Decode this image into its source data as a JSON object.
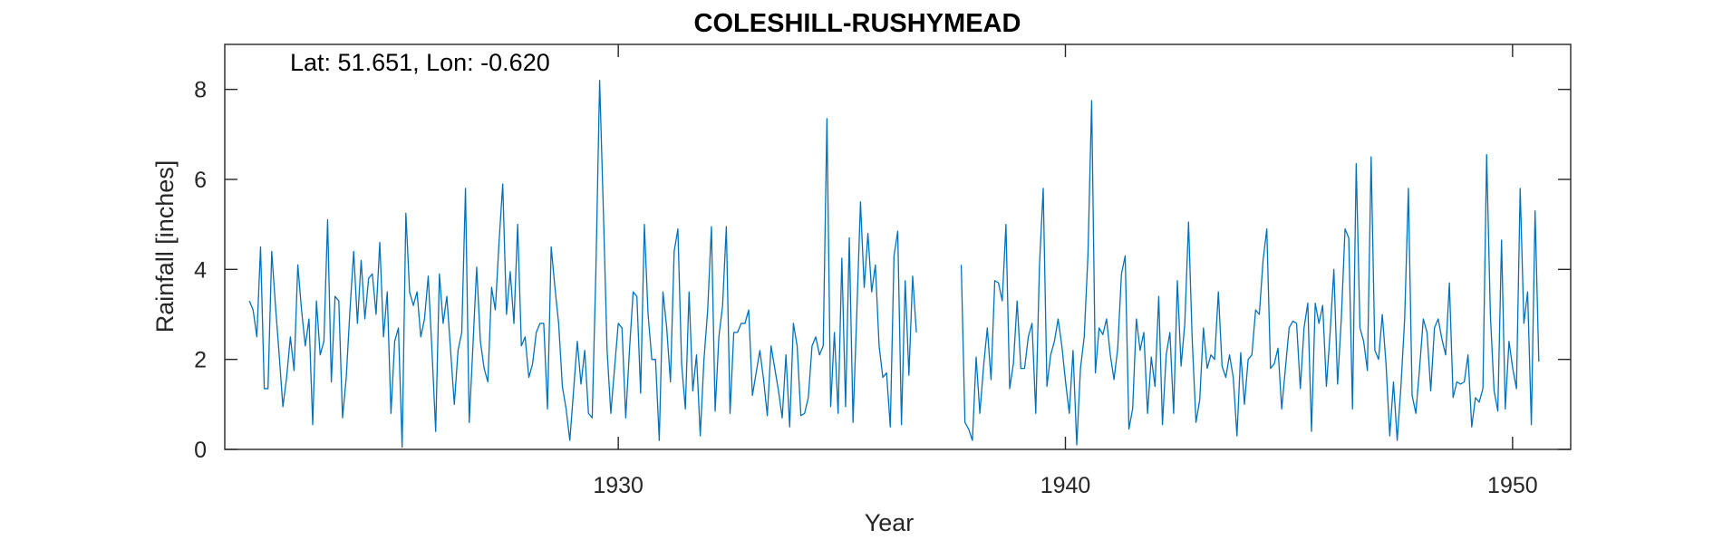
{
  "chart_data": {
    "type": "line",
    "title": "COLESHILL-RUSHYMEAD",
    "annotation": "Lat: 51.651, Lon: -0.620",
    "xlabel": "Year",
    "ylabel": "Rainfall [inches]",
    "xlim": [
      1921.2,
      1951.3
    ],
    "ylim": [
      0,
      9
    ],
    "xticks": [
      1930,
      1940,
      1950
    ],
    "xtick_labels": [
      "1930",
      "1940",
      "1950"
    ],
    "yticks": [
      0,
      2,
      4,
      6,
      8
    ],
    "ytick_labels": [
      "0",
      "2",
      "4",
      "6",
      "8"
    ],
    "grid": false,
    "box": true,
    "color": "#0072BD",
    "series": [
      {
        "segments": [
          {
            "start": 1921.75,
            "values": [
              3.3,
              3.1,
              2.5,
              4.5,
              1.35,
              1.35,
              4.4,
              3.2,
              2.1,
              0.95,
              1.6,
              2.5,
              1.75,
              4.1,
              3.1,
              2.3,
              2.9,
              0.55,
              3.3,
              2.1,
              2.4,
              5.1,
              1.5,
              3.4,
              3.3,
              0.7,
              1.6,
              3.1,
              4.4,
              2.8,
              4.2,
              2.9,
              3.8,
              3.9,
              3.0,
              4.6,
              2.5,
              3.5,
              0.8,
              2.4,
              2.7,
              0.05,
              5.25,
              3.5,
              3.2,
              3.5,
              2.5,
              2.9,
              3.85,
              2.2,
              0.4,
              3.9,
              2.8,
              3.4,
              2.2,
              1.0,
              2.2,
              2.6,
              5.8,
              0.6,
              2.3,
              4.05,
              2.4,
              1.8,
              1.5,
              3.6,
              3.1,
              4.6,
              5.9,
              3.0,
              3.95,
              2.8,
              5.0,
              2.3,
              2.5,
              1.6,
              1.9,
              2.6,
              2.8,
              2.8,
              0.9,
              4.5,
              3.6,
              2.8,
              1.4,
              0.9,
              0.2,
              1.3,
              2.4,
              1.45,
              2.2,
              0.8,
              0.7,
              4.0,
              8.2,
              5.3,
              2.2,
              0.8,
              1.8,
              2.8,
              2.7,
              0.7,
              2.2,
              3.5,
              3.4,
              1.25,
              5.0,
              3.0,
              2.0,
              2.0,
              0.2,
              3.5,
              2.7,
              1.5,
              4.4,
              4.9,
              1.9,
              0.9,
              3.5,
              1.3,
              2.1,
              0.3,
              2.0,
              3.1,
              4.95,
              0.85,
              2.5,
              3.2,
              4.95,
              0.8,
              2.6,
              2.6,
              2.8,
              2.8,
              3.1,
              1.2,
              1.7,
              2.2,
              1.55,
              0.75,
              2.3,
              1.8,
              1.3,
              0.7,
              2.1,
              0.5,
              2.8,
              2.3,
              0.75,
              0.8,
              1.15,
              2.3,
              2.5,
              2.1,
              2.3,
              7.35,
              0.95,
              2.6,
              0.8,
              4.25,
              0.95,
              4.7,
              0.6,
              3.0,
              5.5,
              3.6,
              4.8,
              3.5,
              4.1,
              2.3,
              1.6,
              1.7,
              0.5,
              4.3,
              4.85,
              0.55,
              3.75,
              1.65,
              3.85,
              2.6
            ]
          },
          {
            "start": 1937.67,
            "values": [
              4.1,
              0.6,
              0.45,
              0.2,
              2.05,
              0.8,
              1.85,
              2.7,
              1.55,
              3.75,
              3.7,
              3.3,
              5.0,
              1.35,
              1.9,
              3.3,
              1.8,
              1.8,
              2.5,
              2.8,
              0.8,
              4.1,
              5.8,
              1.4,
              2.1,
              2.4,
              2.9,
              2.3,
              1.5,
              0.8,
              2.2,
              0.1,
              1.8,
              2.5,
              4.3,
              7.75,
              1.7,
              2.7,
              2.55,
              2.9,
              2.1,
              1.55,
              2.25,
              3.9,
              4.3,
              0.45,
              0.9,
              2.9,
              2.2,
              2.6,
              0.8,
              2.05,
              1.4,
              3.4,
              0.55,
              2.1,
              2.6,
              0.8,
              3.75,
              1.85,
              2.8,
              5.05,
              2.4,
              0.6,
              1.1,
              2.7,
              1.8,
              2.1,
              2.0,
              3.5,
              1.85,
              1.6,
              2.1,
              1.6,
              0.3,
              2.15,
              1.0,
              2.0,
              2.1,
              3.1,
              3.0,
              4.2,
              4.9,
              1.8,
              1.9,
              2.25,
              0.9,
              1.8,
              2.7,
              2.85,
              2.8,
              1.35,
              2.7,
              3.25,
              0.4,
              3.25,
              2.8,
              3.2,
              1.4,
              2.6,
              4.0,
              1.45,
              2.9,
              4.9,
              4.7,
              0.9,
              6.35,
              2.7,
              2.4,
              1.75,
              6.5,
              2.2,
              2.0,
              3.0,
              1.9,
              0.3,
              1.5,
              0.2,
              1.4,
              2.9,
              5.8,
              1.2,
              0.8,
              1.8,
              2.9,
              2.6,
              1.3,
              2.7,
              2.9,
              2.45,
              2.1,
              3.7,
              1.15,
              1.5,
              1.45,
              1.5,
              2.1,
              0.5,
              1.15,
              1.05,
              1.35,
              6.55,
              3.0,
              1.3,
              0.85,
              4.65,
              0.9,
              2.4,
              1.8,
              1.35,
              5.8,
              2.8,
              3.5,
              0.55,
              5.3,
              1.95
            ]
          }
        ]
      }
    ]
  }
}
